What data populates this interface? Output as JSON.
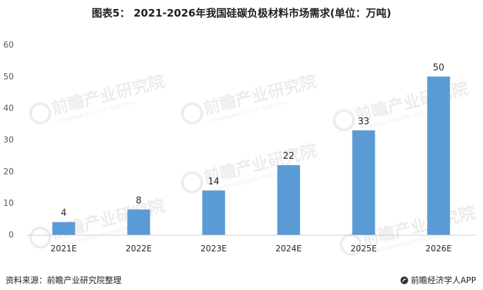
{
  "chart_data": {
    "type": "bar",
    "title": "图表5： 2021-2026年我国硅碳负极材料市场需求(单位：万吨)",
    "categories": [
      "2021E",
      "2022E",
      "2023E",
      "2024E",
      "2025E",
      "2026E"
    ],
    "values": [
      4,
      8,
      14,
      22,
      33,
      50
    ],
    "data_labels": [
      "4",
      "8",
      "14",
      "22",
      "33",
      "50"
    ],
    "yticks": [
      "0",
      "10",
      "20",
      "30",
      "40",
      "50",
      "60"
    ],
    "ylim": [
      0,
      60
    ],
    "grid": false,
    "bar_color": "#5b9bd5"
  },
  "footer": {
    "source": "资料来源：前瞻产业研究院整理",
    "brand": "前瞻经济学人APP",
    "brand_icon": "qianzhan-logo-icon"
  },
  "watermark": {
    "text": "前瞻产业研究院",
    "subtext": "QIANZHAN INDUSTRY RESEARCH"
  }
}
